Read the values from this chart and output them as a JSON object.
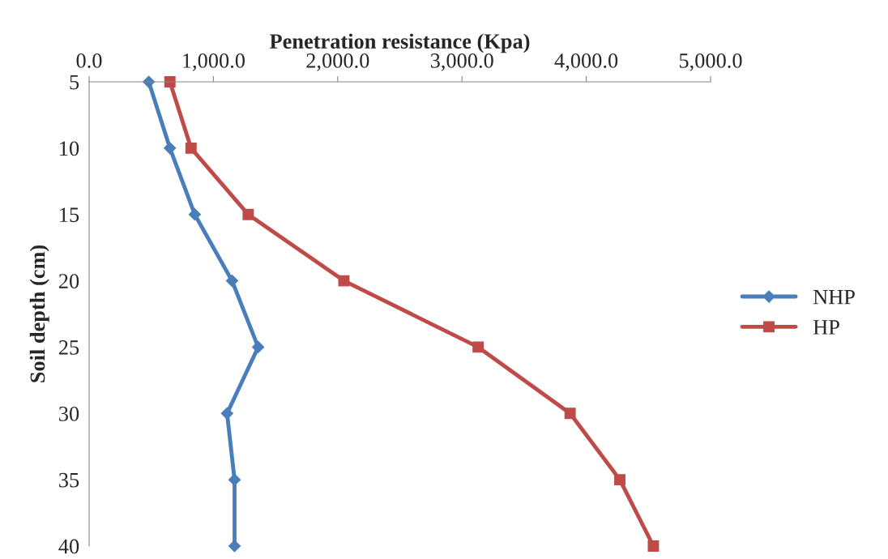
{
  "chart_data": {
    "type": "line",
    "xlabel": "Penetration resistance (Kpa)",
    "ylabel": "Soil depth (cm)",
    "orientation": "horizontal",
    "categories": [
      "5",
      "10",
      "15",
      "20",
      "25",
      "30",
      "35",
      "40"
    ],
    "series": [
      {
        "name": "NHP",
        "color": "#4a7ebb",
        "marker": "diamond",
        "values": [
          480,
          650,
          850,
          1150,
          1360,
          1110,
          1170,
          1170
        ]
      },
      {
        "name": "HP",
        "color": "#be4b48",
        "marker": "square",
        "values": [
          650,
          820,
          1280,
          2050,
          3130,
          3870,
          4270,
          4540
        ]
      }
    ],
    "xlim": [
      0,
      5000
    ],
    "xticks": [
      {
        "value": 0,
        "label": "0.0"
      },
      {
        "value": 1000,
        "label": "1,000.0"
      },
      {
        "value": 2000,
        "label": "2,000.0"
      },
      {
        "value": 3000,
        "label": "3,000.0"
      },
      {
        "value": 4000,
        "label": "4,000.0"
      },
      {
        "value": 5000,
        "label": "5,000.0"
      }
    ],
    "grid": false,
    "legend": "right",
    "line_style": "solid"
  }
}
